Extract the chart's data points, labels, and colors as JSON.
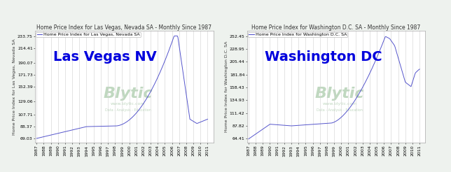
{
  "lv_title": "Home Price Index for Las Vegas, Nevada SA - Monthly Since 1987",
  "lv_legend": "Home Price Index for Las Vegas, Nevada SA",
  "lv_ylabel": "Home Price Index for Las Vegas, Nevada SA",
  "lv_label": "Las Vegas NV",
  "lv_yticks": [
    69.03,
    88.37,
    107.71,
    129.06,
    152.39,
    171.73,
    190.07,
    214.41,
    233.75
  ],
  "lv_ylim": [
    62,
    242
  ],
  "dc_title": "Home Price Index for Washington D.C. SA - Monthly Since 1987",
  "dc_legend": "Home Price Index for Washington D.C. SA",
  "dc_ylabel": "Home Price Index for Washington D.C. SA",
  "dc_label": "Washington DC",
  "dc_yticks": [
    64.41,
    87.82,
    111.42,
    134.93,
    158.43,
    181.84,
    205.44,
    228.95,
    252.45
  ],
  "dc_ylim": [
    57,
    262
  ],
  "x_years": [
    1987,
    1988,
    1989,
    1990,
    1991,
    1992,
    1993,
    1994,
    1995,
    1996,
    1997,
    1998,
    1999,
    2000,
    2001,
    2002,
    2003,
    2004,
    2005,
    2006,
    2007,
    2008,
    2009,
    2010,
    2011
  ],
  "line_color": "#5555cc",
  "bg_color": "#eef2ee",
  "plot_bg": "#ffffff",
  "watermark_color": "#c0d8c0",
  "label_color": "#0000dd",
  "title_fontsize": 5.5,
  "legend_fontsize": 4.5,
  "label_fontsize": 14,
  "tick_fontsize": 4.5,
  "ylabel_fontsize": 4.5
}
